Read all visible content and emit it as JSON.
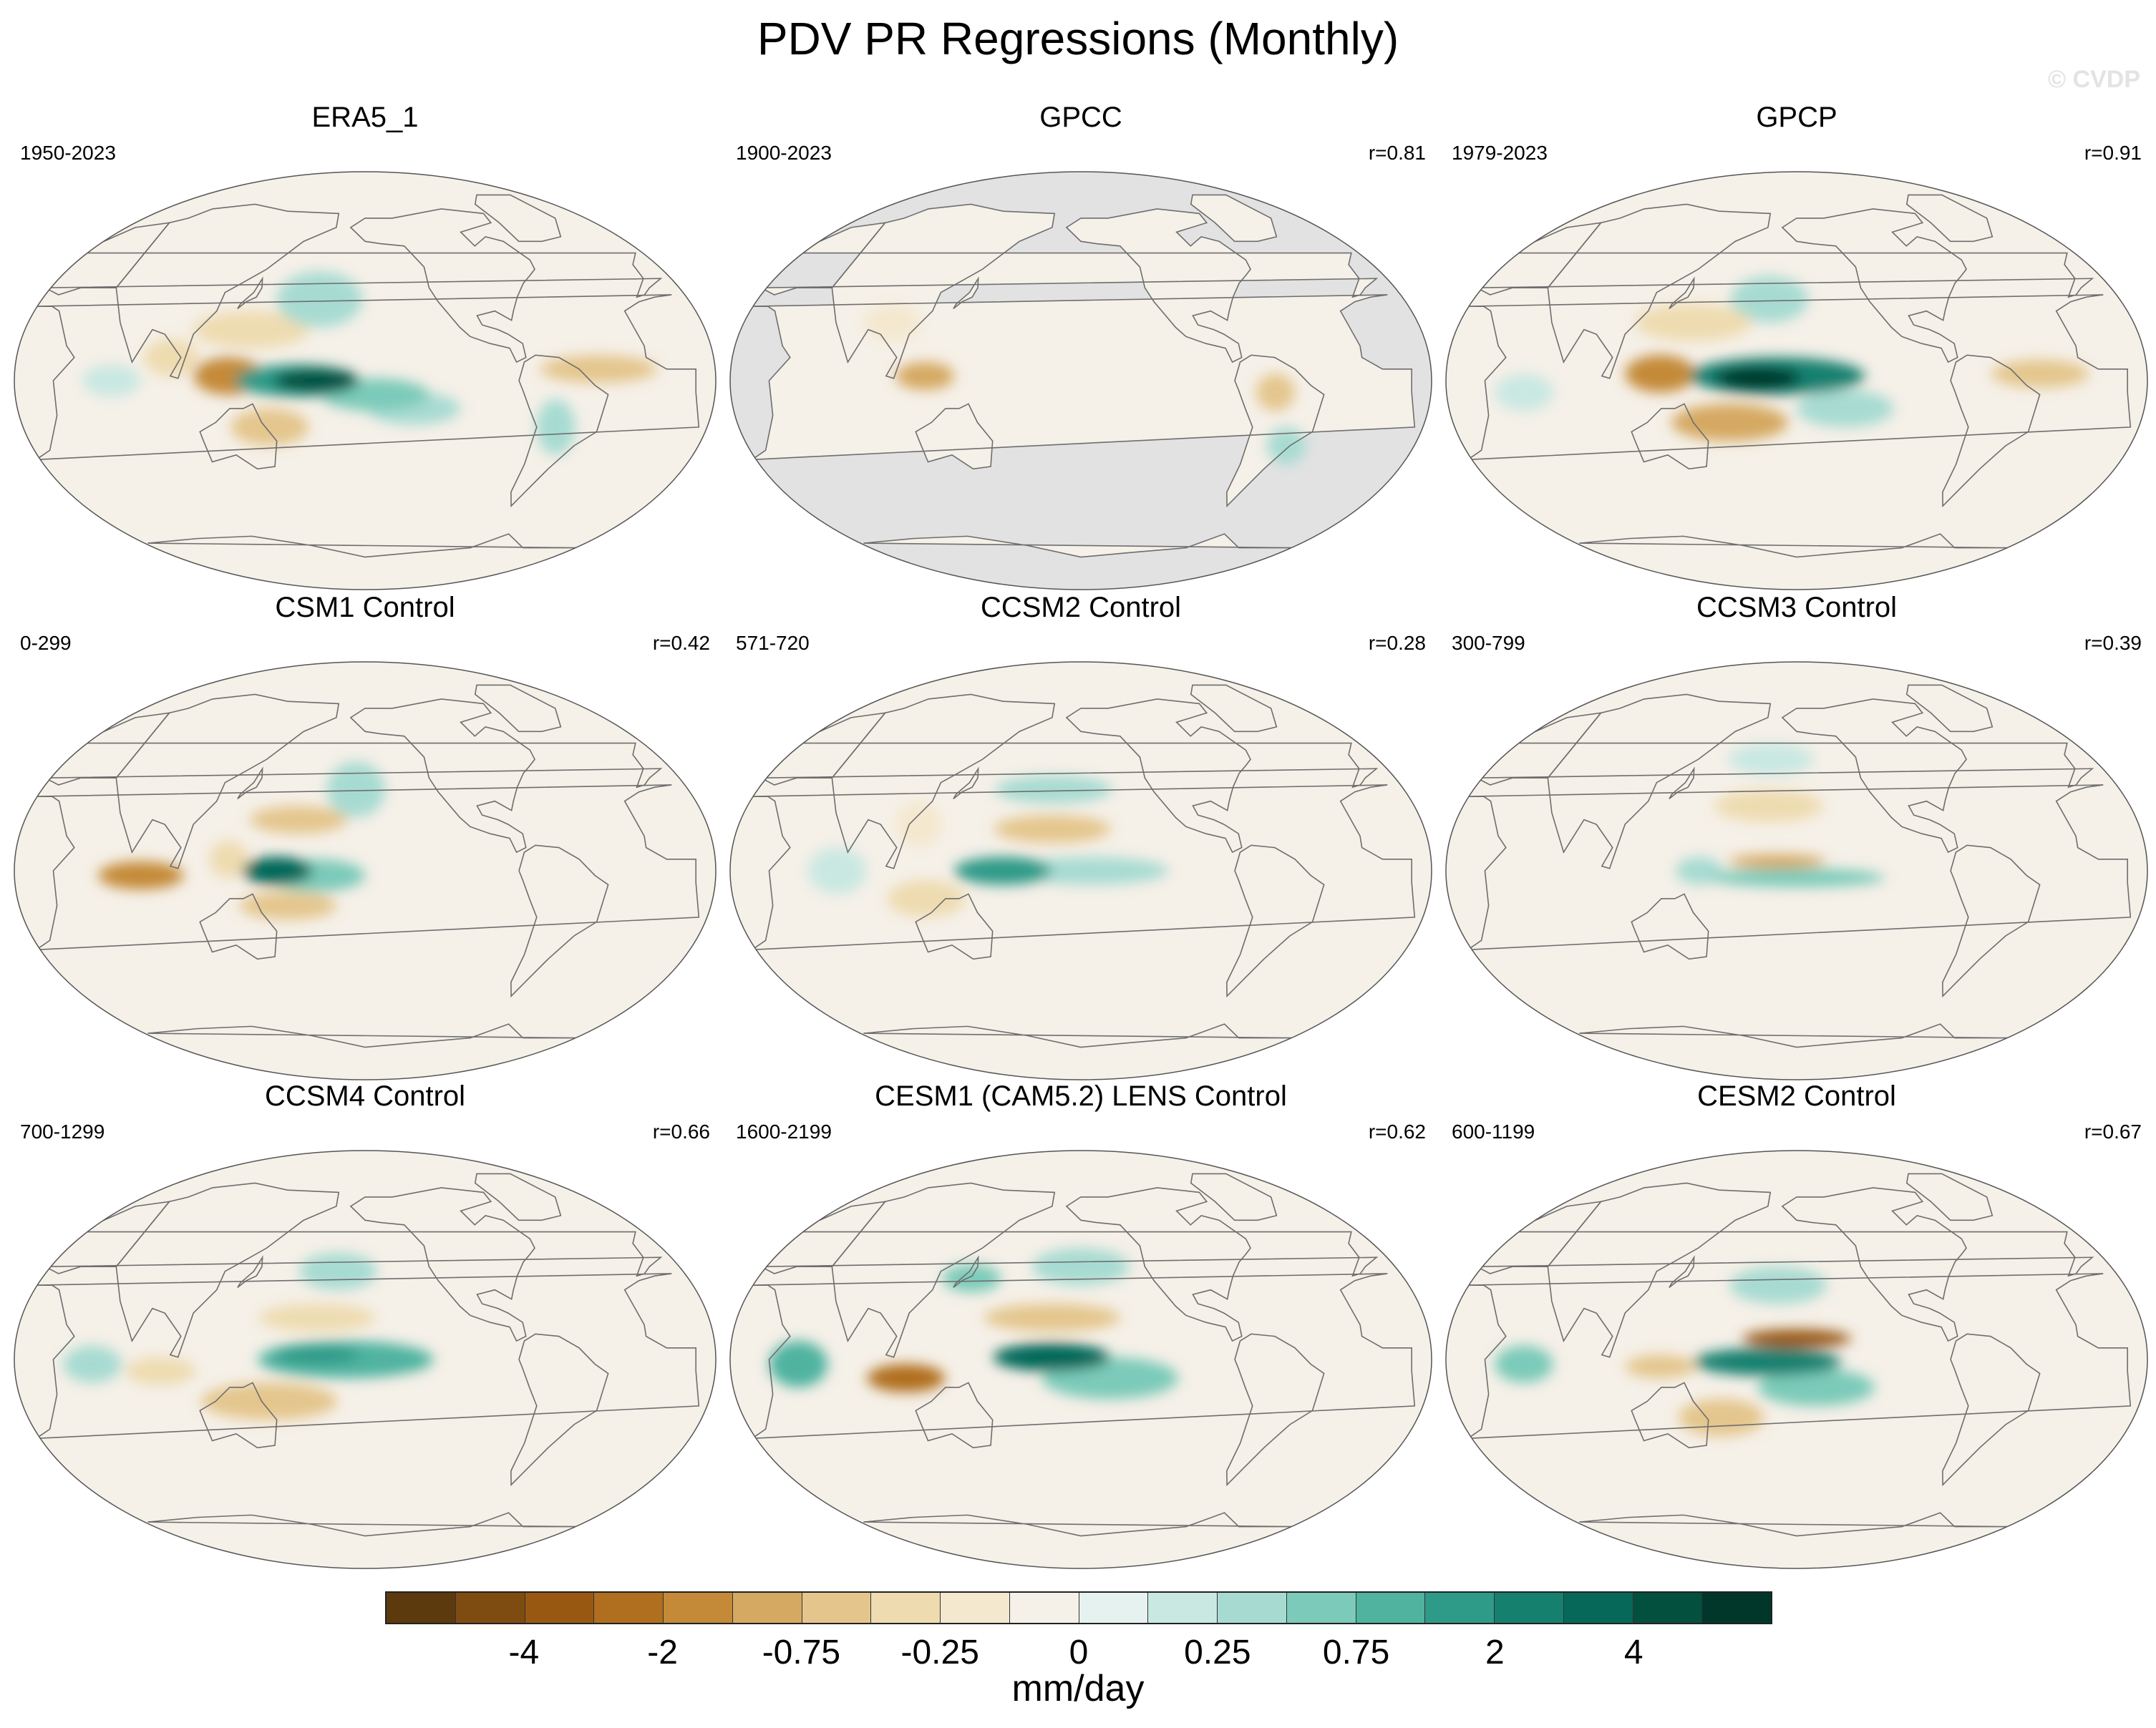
{
  "title": "PDV PR Regressions (Monthly)",
  "watermark": "© CVDP",
  "chart_data": {
    "type": "heatmap",
    "variable": "PR",
    "units": "mm/day",
    "colorbar": {
      "levels": [
        "-4",
        "-2",
        "-0.75",
        "-0.25",
        "0",
        "0.25",
        "0.75",
        "2",
        "4"
      ],
      "colors": [
        "#5c3a0e",
        "#7e4c10",
        "#985812",
        "#b06e1f",
        "#c48a38",
        "#d5a962",
        "#e4c68d",
        "#eedbb0",
        "#f4e8cf",
        "#f5f0e8",
        "#e6f2ef",
        "#c9e8e2",
        "#a7dbd2",
        "#7ccab9",
        "#4fb3a0",
        "#2e9a88",
        "#16806f",
        "#066859",
        "#03503f",
        "#01372b"
      ]
    },
    "panels": [
      {
        "title": "ERA5_1",
        "years": "1950-2023",
        "r": "",
        "land_only": false,
        "features": [
          {
            "lon": 165,
            "lat": 0,
            "rx": 32,
            "ry": 7,
            "c": 0.95
          },
          {
            "lon": 175,
            "lat": 0,
            "rx": 22,
            "ry": 5,
            "c": 1.3
          },
          {
            "lon": 205,
            "lat": -6,
            "rx": 28,
            "ry": 7,
            "c": 0.55
          },
          {
            "lon": 225,
            "lat": -12,
            "rx": 24,
            "ry": 7,
            "c": 0.35
          },
          {
            "lon": 130,
            "lat": 2,
            "rx": 18,
            "ry": 8,
            "c": -0.8
          },
          {
            "lon": 150,
            "lat": -20,
            "rx": 20,
            "ry": 8,
            "c": -0.5
          },
          {
            "lon": 140,
            "lat": 22,
            "rx": 30,
            "ry": 8,
            "c": -0.45
          },
          {
            "lon": 100,
            "lat": 10,
            "rx": 14,
            "ry": 8,
            "c": -0.4
          },
          {
            "lon": 175,
            "lat": 35,
            "rx": 22,
            "ry": 12,
            "c": 0.45
          },
          {
            "lon": 70,
            "lat": 0,
            "rx": 15,
            "ry": 7,
            "c": 0.3
          },
          {
            "lon": 320,
            "lat": 5,
            "rx": 30,
            "ry": 6,
            "c": -0.6
          },
          {
            "lon": 300,
            "lat": -20,
            "rx": 10,
            "ry": 12,
            "c": 0.35
          }
        ]
      },
      {
        "title": "GPCC",
        "years": "1900-2023",
        "r": "r=0.81",
        "land_only": true,
        "features": [
          {
            "lon": 120,
            "lat": 2,
            "rx": 15,
            "ry": 6,
            "c": -0.7
          },
          {
            "lon": 300,
            "lat": -5,
            "rx": 10,
            "ry": 8,
            "c": -0.5
          },
          {
            "lon": 310,
            "lat": -28,
            "rx": 10,
            "ry": 8,
            "c": 0.4
          },
          {
            "lon": 100,
            "lat": 25,
            "rx": 15,
            "ry": 8,
            "c": -0.3
          }
        ]
      },
      {
        "title": "GPCP",
        "years": "1979-2023",
        "r": "r=0.91",
        "land_only": false,
        "features": [
          {
            "lon": 190,
            "lat": 2,
            "rx": 45,
            "ry": 8,
            "c": 1.05
          },
          {
            "lon": 180,
            "lat": 1,
            "rx": 22,
            "ry": 5,
            "c": 1.45
          },
          {
            "lon": 225,
            "lat": -12,
            "rx": 25,
            "ry": 8,
            "c": 0.45
          },
          {
            "lon": 130,
            "lat": 3,
            "rx": 18,
            "ry": 8,
            "c": -0.95
          },
          {
            "lon": 165,
            "lat": -18,
            "rx": 30,
            "ry": 8,
            "c": -0.7
          },
          {
            "lon": 145,
            "lat": 25,
            "rx": 30,
            "ry": 8,
            "c": -0.45
          },
          {
            "lon": 325,
            "lat": 3,
            "rx": 25,
            "ry": 6,
            "c": -0.5
          },
          {
            "lon": 185,
            "lat": 35,
            "rx": 20,
            "ry": 10,
            "c": 0.4
          },
          {
            "lon": 60,
            "lat": -5,
            "rx": 15,
            "ry": 8,
            "c": 0.3
          }
        ]
      },
      {
        "title": "CSM1 Control",
        "years": "0-299",
        "r": "r=0.42",
        "land_only": false,
        "features": [
          {
            "lon": 155,
            "lat": 0,
            "rx": 18,
            "ry": 6,
            "c": 1.15
          },
          {
            "lon": 175,
            "lat": -2,
            "rx": 25,
            "ry": 7,
            "c": 0.5
          },
          {
            "lon": 85,
            "lat": -2,
            "rx": 22,
            "ry": 6,
            "c": -0.85
          },
          {
            "lon": 165,
            "lat": 22,
            "rx": 25,
            "ry": 6,
            "c": -0.55
          },
          {
            "lon": 160,
            "lat": -15,
            "rx": 25,
            "ry": 6,
            "c": -0.5
          },
          {
            "lon": 195,
            "lat": 35,
            "rx": 15,
            "ry": 12,
            "c": 0.35
          },
          {
            "lon": 130,
            "lat": 5,
            "rx": 10,
            "ry": 8,
            "c": -0.4
          }
        ]
      },
      {
        "title": "CCSM2 Control",
        "years": "571-720",
        "r": "r=0.28",
        "land_only": false,
        "features": [
          {
            "lon": 160,
            "lat": 0,
            "rx": 25,
            "ry": 6,
            "c": 0.85
          },
          {
            "lon": 205,
            "lat": 0,
            "rx": 40,
            "ry": 6,
            "c": 0.45
          },
          {
            "lon": 185,
            "lat": 18,
            "rx": 30,
            "ry": 6,
            "c": -0.55
          },
          {
            "lon": 185,
            "lat": 35,
            "rx": 30,
            "ry": 6,
            "c": 0.4
          },
          {
            "lon": 120,
            "lat": -12,
            "rx": 20,
            "ry": 8,
            "c": -0.35
          },
          {
            "lon": 75,
            "lat": 0,
            "rx": 15,
            "ry": 10,
            "c": 0.3
          },
          {
            "lon": 115,
            "lat": 20,
            "rx": 12,
            "ry": 10,
            "c": -0.3
          }
        ]
      },
      {
        "title": "CCSM3 Control",
        "years": "300-799",
        "r": "r=0.39",
        "land_only": false,
        "features": [
          {
            "lon": 200,
            "lat": -3,
            "rx": 45,
            "ry": 4,
            "c": 0.6
          },
          {
            "lon": 190,
            "lat": 4,
            "rx": 25,
            "ry": 3,
            "c": -0.75
          },
          {
            "lon": 185,
            "lat": 28,
            "rx": 28,
            "ry": 7,
            "c": -0.35
          },
          {
            "lon": 185,
            "lat": 48,
            "rx": 22,
            "ry": 7,
            "c": 0.3
          },
          {
            "lon": 150,
            "lat": 0,
            "rx": 12,
            "ry": 6,
            "c": 0.35
          }
        ]
      },
      {
        "title": "CCSM4 Control",
        "years": "700-1299",
        "r": "r=0.66",
        "land_only": false,
        "features": [
          {
            "lon": 190,
            "lat": 0,
            "rx": 45,
            "ry": 8,
            "c": 0.7
          },
          {
            "lon": 175,
            "lat": 2,
            "rx": 22,
            "ry": 4,
            "c": 0.95
          },
          {
            "lon": 175,
            "lat": 18,
            "rx": 30,
            "ry": 6,
            "c": -0.45
          },
          {
            "lon": 150,
            "lat": -18,
            "rx": 35,
            "ry": 8,
            "c": -0.5
          },
          {
            "lon": 185,
            "lat": 38,
            "rx": 20,
            "ry": 8,
            "c": 0.35
          },
          {
            "lon": 60,
            "lat": -2,
            "rx": 15,
            "ry": 8,
            "c": 0.4
          },
          {
            "lon": 95,
            "lat": -5,
            "rx": 18,
            "ry": 6,
            "c": -0.35
          }
        ]
      },
      {
        "title": "CESM1 (CAM5.2) LENS Control",
        "years": "1600-2199",
        "r": "r=0.62",
        "land_only": false,
        "features": [
          {
            "lon": 185,
            "lat": 1,
            "rx": 30,
            "ry": 6,
            "c": 1.2
          },
          {
            "lon": 215,
            "lat": -8,
            "rx": 35,
            "ry": 9,
            "c": 0.6
          },
          {
            "lon": 110,
            "lat": -8,
            "rx": 20,
            "ry": 6,
            "c": -1.0
          },
          {
            "lon": 185,
            "lat": 18,
            "rx": 35,
            "ry": 6,
            "c": -0.55
          },
          {
            "lon": 55,
            "lat": -2,
            "rx": 15,
            "ry": 10,
            "c": 0.65
          },
          {
            "lon": 200,
            "lat": 40,
            "rx": 25,
            "ry": 8,
            "c": 0.35
          },
          {
            "lon": 140,
            "lat": 35,
            "rx": 15,
            "ry": 6,
            "c": 0.5
          }
        ]
      },
      {
        "title": "CESM2 Control",
        "years": "600-1199",
        "r": "r=0.67",
        "land_only": false,
        "features": [
          {
            "lon": 200,
            "lat": 9,
            "rx": 28,
            "ry": 4,
            "c": -1.2
          },
          {
            "lon": 185,
            "lat": -1,
            "rx": 38,
            "ry": 6,
            "c": 1.0
          },
          {
            "lon": 210,
            "lat": -12,
            "rx": 30,
            "ry": 8,
            "c": 0.55
          },
          {
            "lon": 130,
            "lat": -3,
            "rx": 18,
            "ry": 5,
            "c": -0.6
          },
          {
            "lon": 160,
            "lat": -25,
            "rx": 22,
            "ry": 8,
            "c": -0.6
          },
          {
            "lon": 60,
            "lat": -2,
            "rx": 15,
            "ry": 8,
            "c": 0.55
          },
          {
            "lon": 190,
            "lat": 32,
            "rx": 25,
            "ry": 8,
            "c": 0.35
          }
        ]
      }
    ]
  }
}
